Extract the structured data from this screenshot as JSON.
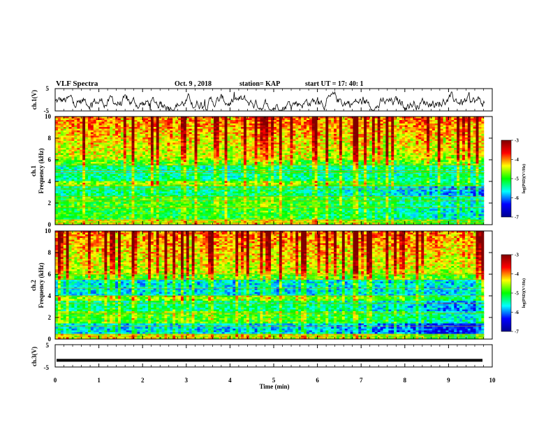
{
  "header": {
    "title": "VLF Spectra",
    "date": "Oct. 9 , 2018",
    "station": "station= KAP",
    "start": "start  UT =  17: 40: 1"
  },
  "chart_data": [
    {
      "type": "line",
      "name": "ch1-waveform",
      "ylabel": "ch.1(V)",
      "yticks": [
        "5",
        "-5"
      ],
      "ylim": [
        -5,
        5
      ],
      "xlim": [
        0,
        10
      ],
      "data_extent_min": 9.82,
      "trace": "noisy waveform, mostly between -4 and 2 V"
    },
    {
      "type": "heatmap",
      "name": "ch1-spectrogram",
      "ylabel": "ch.1\nFrequency (kHz)",
      "ylabel_lines": [
        "ch.1",
        "Frequency (kHz)"
      ],
      "yticks": [
        "0",
        "2",
        "4",
        "6",
        "8",
        "10"
      ],
      "ylim": [
        0,
        10
      ],
      "xlim": [
        0,
        10
      ],
      "colorbar": {
        "label": "log(PSD)(V²/Hz)",
        "ticks": [
          "-3",
          "-4",
          "-5",
          "-6",
          "-7"
        ],
        "range": [
          -7,
          -3
        ]
      }
    },
    {
      "type": "heatmap",
      "name": "ch2-spectrogram",
      "ylabel_lines": [
        "ch.2",
        "Frequency (kHz)"
      ],
      "yticks": [
        "0",
        "2",
        "4",
        "6",
        "8",
        "10"
      ],
      "ylim": [
        0,
        10
      ],
      "xlim": [
        0,
        10
      ],
      "colorbar": {
        "label": "log(PSD)(V²/Hz)",
        "ticks": [
          "-3",
          "-4",
          "-5",
          "-6",
          "-7"
        ],
        "range": [
          -7,
          -3
        ]
      }
    },
    {
      "type": "line",
      "name": "ch3-waveform",
      "ylabel": "ch.3(V)",
      "yticks": [
        "5",
        "-5"
      ],
      "ylim": [
        -5,
        5
      ],
      "constant_value": -2
    }
  ],
  "xaxis": {
    "label": "Time (min)",
    "ticks": [
      "0",
      "1",
      "2",
      "3",
      "4",
      "5",
      "6",
      "7",
      "8",
      "9",
      "10"
    ],
    "range": [
      0,
      10
    ]
  },
  "colors": {
    "jet": [
      "#00008f",
      "#0000ff",
      "#00ffff",
      "#00ff00",
      "#ffff00",
      "#ff0000",
      "#800000"
    ]
  }
}
